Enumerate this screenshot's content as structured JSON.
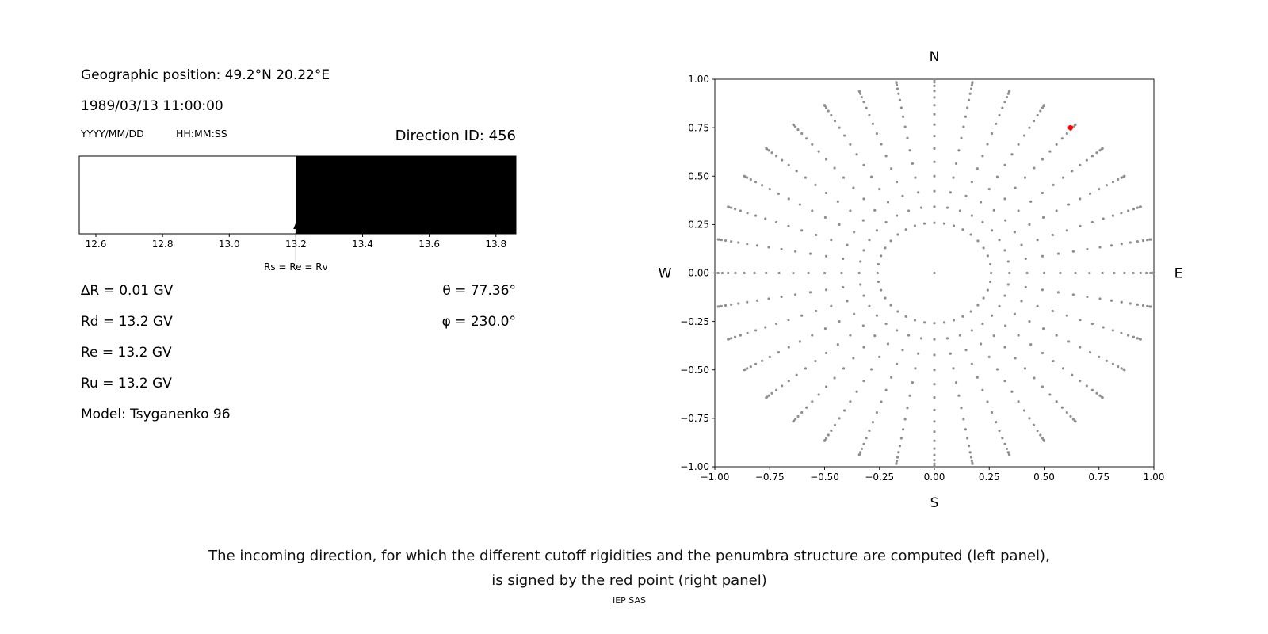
{
  "left_panel": {
    "geo_position": "Geographic position: 49.2°N 20.22°E",
    "datetime": "1989/03/13 11:00:00",
    "date_format_hint": "YYYY/MM/DD",
    "time_format_hint": "HH:MM:SS",
    "direction_id": "Direction ID: 456",
    "delta_r": "∆R = 0.01 GV",
    "rd": "Rd = 13.2 GV",
    "re": "Re = 13.2 GV",
    "ru": "Ru = 13.2 GV",
    "model": "Model: Tsyganenko 96",
    "theta": "θ = 77.36°",
    "phi": "φ = 230.0°"
  },
  "caption": {
    "line1": "The incoming direction, for which the different cutoff rigidities and the penumbra structure are computed (left panel),",
    "line2": "is signed by the red point (right panel)",
    "credit": "IEP SAS"
  },
  "chart_data": [
    {
      "type": "bar",
      "name": "penumbra-structure",
      "title": "",
      "xlabel": "",
      "ylabel": "",
      "x_range": [
        12.55,
        13.86
      ],
      "x_tick_values": [
        12.6,
        12.8,
        13.0,
        13.2,
        13.4,
        13.6,
        13.8
      ],
      "x_tick_labels": [
        "12.6",
        "12.8",
        "13.0",
        "13.2",
        "13.4",
        "13.6",
        "13.8"
      ],
      "bands": [
        {
          "x0": 12.55,
          "x1": 13.2,
          "color": "#ffffff"
        },
        {
          "x0": 13.2,
          "x1": 13.86,
          "color": "#000000"
        }
      ],
      "marker": {
        "x": 13.2,
        "label": "Rs = Re = Rv"
      }
    },
    {
      "type": "scatter",
      "name": "incoming-directions",
      "x_range": [
        -1,
        1
      ],
      "y_range": [
        -1,
        1
      ],
      "x_tick_values": [
        -1,
        -0.75,
        -0.5,
        -0.25,
        0,
        0.25,
        0.5,
        0.75,
        1
      ],
      "x_tick_labels": [
        "−1.00",
        "−0.75",
        "−0.50",
        "−0.25",
        "0.00",
        "0.25",
        "0.50",
        "0.75",
        "1.00"
      ],
      "y_tick_values": [
        -1,
        -0.75,
        -0.5,
        -0.25,
        0,
        0.25,
        0.5,
        0.75,
        1
      ],
      "y_tick_labels": [
        "−1.00",
        "−0.75",
        "−0.50",
        "−0.25",
        "0.00",
        "0.25",
        "0.50",
        "0.75",
        "1.00"
      ],
      "compass": {
        "north": "N",
        "south": "S",
        "west": "W",
        "east": "E"
      },
      "direction_grid": {
        "azimuth_start_deg": 0,
        "azimuth_step_deg": 10,
        "zenith_start_deg": 15,
        "zenith_end_deg": 90,
        "zenith_step_deg": 5,
        "radial_mapping": "sin(zenith)",
        "include_center_point": true,
        "point_color": "#8f8f8f"
      },
      "selected_direction": {
        "x": 0.62,
        "y": 0.75,
        "color": "#ff0000"
      }
    }
  ]
}
